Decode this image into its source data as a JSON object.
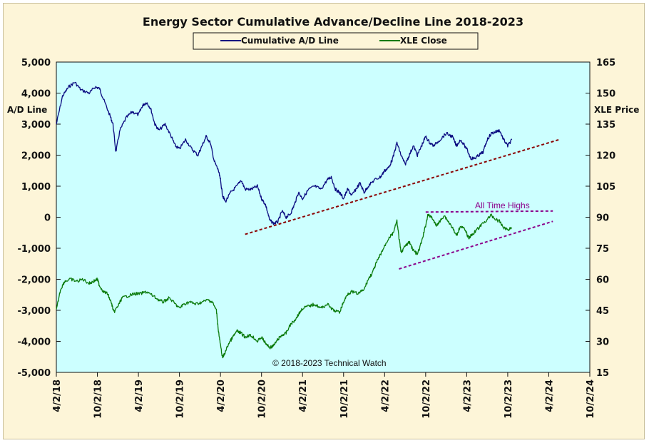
{
  "chart_data": {
    "type": "line",
    "title": "Energy Sector Cumulative  Advance/Decline  Line  2018-2023",
    "y_left_label": "A/D Line",
    "y_right_label": "XLE Price",
    "y_left_ticks": [
      "5,000",
      "4,000",
      "3,000",
      "2,000",
      "1,000",
      "0",
      "-1,000",
      "-2,000",
      "-3,000",
      "-4,000",
      "-5,000"
    ],
    "y_left_range": [
      -5000,
      5000
    ],
    "y_right_ticks": [
      "165",
      "150",
      "135",
      "120",
      "105",
      "90",
      "75",
      "60",
      "45",
      "30",
      "15"
    ],
    "y_right_range": [
      15,
      165
    ],
    "x_ticks": [
      "4/2/18",
      "10/2/18",
      "4/2/19",
      "10/2/19",
      "4/2/20",
      "10/2/20",
      "4/2/21",
      "10/2/21",
      "4/2/22",
      "10/2/22",
      "4/2/23",
      "10/2/23",
      "4/2/24",
      "10/2/24"
    ],
    "x_range": [
      0,
      13
    ],
    "legend": {
      "position": "top-center",
      "entries": [
        "Cumulative A/D Line",
        "XLE Close"
      ]
    },
    "series": [
      {
        "name": "Cumulative A/D Line",
        "axis": "left",
        "color": "#0a0a80",
        "points": [
          [
            0,
            3000
          ],
          [
            0.15,
            3900
          ],
          [
            0.3,
            4200
          ],
          [
            0.45,
            4350
          ],
          [
            0.6,
            4100
          ],
          [
            0.8,
            4000
          ],
          [
            0.95,
            4200
          ],
          [
            1.05,
            4150
          ],
          [
            1.15,
            3800
          ],
          [
            1.3,
            3300
          ],
          [
            1.38,
            3000
          ],
          [
            1.45,
            2100
          ],
          [
            1.55,
            2800
          ],
          [
            1.7,
            3200
          ],
          [
            1.85,
            3400
          ],
          [
            2.0,
            3300
          ],
          [
            2.1,
            3600
          ],
          [
            2.2,
            3700
          ],
          [
            2.3,
            3500
          ],
          [
            2.4,
            3000
          ],
          [
            2.5,
            2800
          ],
          [
            2.65,
            3000
          ],
          [
            2.8,
            2600
          ],
          [
            2.9,
            2300
          ],
          [
            3.0,
            2200
          ],
          [
            3.15,
            2500
          ],
          [
            3.3,
            2200
          ],
          [
            3.45,
            2000
          ],
          [
            3.55,
            2300
          ],
          [
            3.65,
            2600
          ],
          [
            3.75,
            2400
          ],
          [
            3.85,
            1800
          ],
          [
            3.95,
            1500
          ],
          [
            4.0,
            1200
          ],
          [
            4.05,
            700
          ],
          [
            4.12,
            500
          ],
          [
            4.25,
            800
          ],
          [
            4.4,
            1000
          ],
          [
            4.5,
            1200
          ],
          [
            4.6,
            900
          ],
          [
            4.75,
            900
          ],
          [
            4.9,
            1000
          ],
          [
            5.0,
            600
          ],
          [
            5.1,
            400
          ],
          [
            5.2,
            -100
          ],
          [
            5.3,
            -200
          ],
          [
            5.4,
            -150
          ],
          [
            5.5,
            200
          ],
          [
            5.6,
            0
          ],
          [
            5.7,
            100
          ],
          [
            5.8,
            400
          ],
          [
            5.9,
            800
          ],
          [
            6.0,
            600
          ],
          [
            6.15,
            900
          ],
          [
            6.3,
            1000
          ],
          [
            6.45,
            900
          ],
          [
            6.6,
            1200
          ],
          [
            6.7,
            1300
          ],
          [
            6.8,
            900
          ],
          [
            6.9,
            800
          ],
          [
            7.0,
            600
          ],
          [
            7.1,
            900
          ],
          [
            7.2,
            700
          ],
          [
            7.3,
            900
          ],
          [
            7.4,
            1100
          ],
          [
            7.5,
            800
          ],
          [
            7.6,
            1000
          ],
          [
            7.75,
            1200
          ],
          [
            7.9,
            1300
          ],
          [
            8.0,
            1500
          ],
          [
            8.1,
            1600
          ],
          [
            8.2,
            1900
          ],
          [
            8.3,
            2400
          ],
          [
            8.4,
            2000
          ],
          [
            8.5,
            1700
          ],
          [
            8.6,
            2000
          ],
          [
            8.7,
            2300
          ],
          [
            8.8,
            2000
          ],
          [
            8.9,
            2300
          ],
          [
            9.0,
            2600
          ],
          [
            9.1,
            2400
          ],
          [
            9.2,
            2300
          ],
          [
            9.35,
            2500
          ],
          [
            9.5,
            2700
          ],
          [
            9.65,
            2600
          ],
          [
            9.75,
            2300
          ],
          [
            9.85,
            2500
          ],
          [
            10.0,
            2200
          ],
          [
            10.1,
            1900
          ],
          [
            10.2,
            1900
          ],
          [
            10.3,
            2000
          ],
          [
            10.4,
            2100
          ],
          [
            10.5,
            2500
          ],
          [
            10.6,
            2700
          ],
          [
            10.7,
            2750
          ],
          [
            10.8,
            2800
          ],
          [
            10.9,
            2500
          ],
          [
            11.0,
            2300
          ],
          [
            11.1,
            2500
          ]
        ]
      },
      {
        "name": "XLE Close",
        "axis": "right",
        "color": "#0a7a0a",
        "points": [
          [
            0,
            45
          ],
          [
            0.1,
            55
          ],
          [
            0.2,
            59
          ],
          [
            0.35,
            60
          ],
          [
            0.5,
            59
          ],
          [
            0.65,
            60
          ],
          [
            0.8,
            58
          ],
          [
            0.9,
            59
          ],
          [
            1.0,
            60
          ],
          [
            1.05,
            57
          ],
          [
            1.15,
            54
          ],
          [
            1.25,
            53
          ],
          [
            1.35,
            48
          ],
          [
            1.4,
            44
          ],
          [
            1.5,
            47
          ],
          [
            1.6,
            51
          ],
          [
            1.75,
            52
          ],
          [
            1.9,
            53
          ],
          [
            2.05,
            53
          ],
          [
            2.2,
            54
          ],
          [
            2.35,
            52
          ],
          [
            2.5,
            50
          ],
          [
            2.6,
            49
          ],
          [
            2.75,
            51
          ],
          [
            2.9,
            48
          ],
          [
            3.0,
            46
          ],
          [
            3.1,
            48
          ],
          [
            3.25,
            49
          ],
          [
            3.4,
            48
          ],
          [
            3.55,
            49
          ],
          [
            3.7,
            50
          ],
          [
            3.8,
            49
          ],
          [
            3.9,
            45
          ],
          [
            3.95,
            35
          ],
          [
            4.0,
            28
          ],
          [
            4.05,
            22
          ],
          [
            4.1,
            24
          ],
          [
            4.2,
            29
          ],
          [
            4.3,
            32
          ],
          [
            4.4,
            35
          ],
          [
            4.5,
            34
          ],
          [
            4.6,
            32
          ],
          [
            4.7,
            33
          ],
          [
            4.8,
            32
          ],
          [
            4.9,
            30
          ],
          [
            5.0,
            32
          ],
          [
            5.1,
            29
          ],
          [
            5.2,
            27
          ],
          [
            5.3,
            28
          ],
          [
            5.4,
            31
          ],
          [
            5.5,
            33
          ],
          [
            5.6,
            34
          ],
          [
            5.7,
            38
          ],
          [
            5.8,
            40
          ],
          [
            5.9,
            43
          ],
          [
            6.0,
            46
          ],
          [
            6.15,
            47
          ],
          [
            6.3,
            48
          ],
          [
            6.45,
            46
          ],
          [
            6.6,
            48
          ],
          [
            6.75,
            45
          ],
          [
            6.9,
            44
          ],
          [
            7.0,
            49
          ],
          [
            7.1,
            53
          ],
          [
            7.2,
            54
          ],
          [
            7.35,
            53
          ],
          [
            7.5,
            55
          ],
          [
            7.6,
            60
          ],
          [
            7.7,
            63
          ],
          [
            7.8,
            68
          ],
          [
            7.9,
            72
          ],
          [
            8.0,
            76
          ],
          [
            8.1,
            80
          ],
          [
            8.2,
            82
          ],
          [
            8.3,
            88
          ],
          [
            8.35,
            80
          ],
          [
            8.4,
            73
          ],
          [
            8.5,
            76
          ],
          [
            8.6,
            78
          ],
          [
            8.7,
            74
          ],
          [
            8.8,
            72
          ],
          [
            8.9,
            78
          ],
          [
            9.0,
            86
          ],
          [
            9.05,
            91
          ],
          [
            9.15,
            90
          ],
          [
            9.25,
            86
          ],
          [
            9.35,
            88
          ],
          [
            9.45,
            91
          ],
          [
            9.55,
            88
          ],
          [
            9.65,
            85
          ],
          [
            9.75,
            81
          ],
          [
            9.85,
            86
          ],
          [
            9.95,
            84
          ],
          [
            10.05,
            80
          ],
          [
            10.15,
            82
          ],
          [
            10.3,
            85
          ],
          [
            10.45,
            88
          ],
          [
            10.6,
            91
          ],
          [
            10.7,
            89
          ],
          [
            10.8,
            88
          ],
          [
            10.9,
            85
          ],
          [
            11.0,
            84
          ],
          [
            11.1,
            85
          ]
        ]
      }
    ],
    "annotations": [
      {
        "text": "All Time Highs"
      },
      {
        "text": "© 2018-2023  Technical Watch"
      }
    ],
    "trendlines": [
      {
        "axis": "left",
        "from": [
          4.6,
          -550
        ],
        "to": [
          12.25,
          2500
        ],
        "color": "#8b0000",
        "style": "dashed"
      },
      {
        "axis": "right",
        "from": [
          8.35,
          65
        ],
        "to": [
          12.1,
          88
        ],
        "color": "#8b008b",
        "style": "dashed"
      },
      {
        "axis": "right",
        "from": [
          9.0,
          92.5
        ],
        "to": [
          12.1,
          93
        ],
        "color": "#8b008b",
        "style": "dashed"
      }
    ],
    "grid": false,
    "plot_background": "#ccffff"
  }
}
